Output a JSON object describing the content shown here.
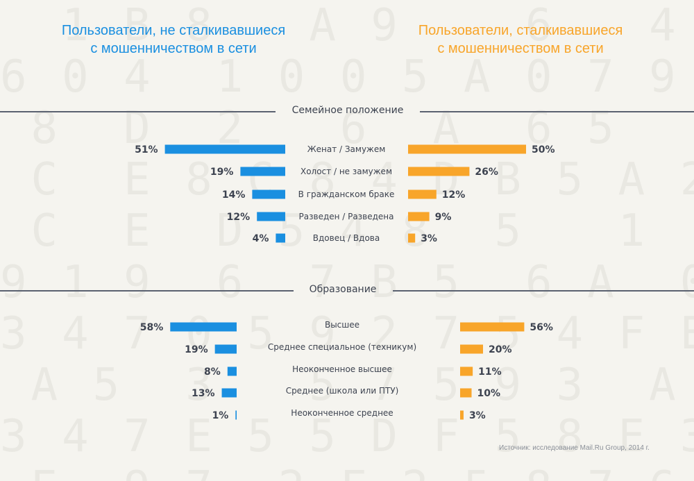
{
  "theme": {
    "left_color": "#1a8fe0",
    "right_color": "#f8a52a",
    "text_color": "#3d4350",
    "value_color": "#3d4350"
  },
  "header": {
    "left_title": [
      "Пользователи, не сталкивавшиеся",
      "с мошенничеством в сети"
    ],
    "right_title": [
      "Пользователи, сталкивавшиеся",
      "с мошенничеством в сети"
    ]
  },
  "chart_data": [
    {
      "type": "bar",
      "title": "Семейное положение",
      "categories": [
        "Женат / Замужем",
        "Холост / не замужем",
        "В гражданском браке",
        "Разведен / Разведена",
        "Вдовец / Вдова"
      ],
      "series": [
        {
          "name": "Пользователи, не сталкивавшиеся с мошенничеством в сети",
          "values": [
            51,
            19,
            14,
            12,
            4
          ],
          "labels": [
            "51%",
            "19%",
            "14%",
            "12%",
            "4%"
          ]
        },
        {
          "name": "Пользователи, сталкивавшиеся с мошенничеством в сети",
          "values": [
            50,
            26,
            12,
            9,
            3
          ],
          "labels": [
            "50%",
            "26%",
            "12%",
            "9%",
            "3%"
          ]
        }
      ]
    },
    {
      "type": "bar",
      "title": "Образование",
      "categories": [
        "Высшее",
        "Среднее специальное (техникум)",
        "Неоконченное высшее",
        "Среднее (школа или ПТУ)",
        "Неоконченное среднее"
      ],
      "series": [
        {
          "name": "Пользователи, не сталкивавшиеся с мошенничеством в сети",
          "values": [
            58,
            19,
            8,
            13,
            1
          ],
          "labels": [
            "58%",
            "19%",
            "8%",
            "13%",
            "1%"
          ]
        },
        {
          "name": "Пользователи, сталкивавшиеся с мошенничеством в сети",
          "values": [
            56,
            20,
            11,
            10,
            3
          ],
          "labels": [
            "56%",
            "20%",
            "11%",
            "10%",
            "3%"
          ]
        }
      ]
    }
  ],
  "source": "Источник: исследование Mail.Ru Group, 2014 г."
}
